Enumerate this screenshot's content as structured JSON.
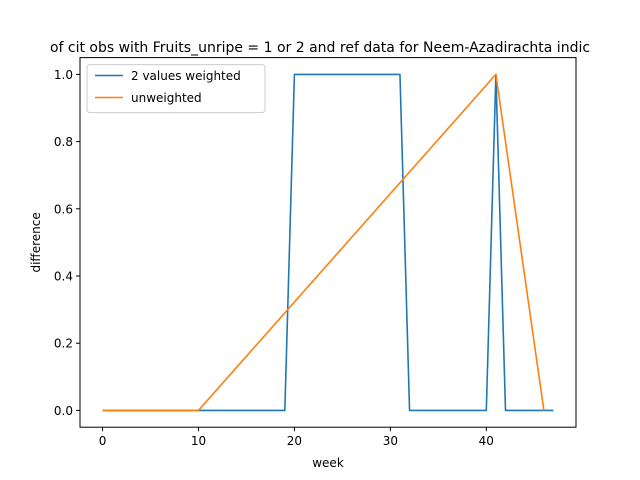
{
  "chart_data": {
    "type": "line",
    "title": "of cit obs with Fruits_unripe = 1 or 2 and ref data for Neem-Azadirachta indic",
    "xlabel": "week",
    "ylabel": "difference",
    "xlim": [
      -2.35,
      49.35
    ],
    "ylim": [
      -0.05,
      1.05
    ],
    "xticks": [
      0,
      10,
      20,
      30,
      40
    ],
    "yticks": [
      0.0,
      0.2,
      0.4,
      0.6,
      0.8,
      1.0
    ],
    "xtick_labels": [
      "0",
      "10",
      "20",
      "30",
      "40"
    ],
    "ytick_labels": [
      "0.0",
      "0.2",
      "0.4",
      "0.6",
      "0.8",
      "1.0"
    ],
    "grid": false,
    "legend_position": "upper-left",
    "series": [
      {
        "name": "2 values weighted",
        "color": "#1f77b4",
        "x": [
          0,
          19,
          20,
          31,
          32,
          40,
          41,
          42,
          47
        ],
        "y": [
          0,
          0,
          1,
          1,
          0,
          0,
          1,
          0,
          0
        ]
      },
      {
        "name": "unweighted",
        "color": "#ff7f0e",
        "x": [
          0,
          10,
          41,
          46
        ],
        "y": [
          0,
          0,
          1,
          0
        ]
      }
    ]
  }
}
